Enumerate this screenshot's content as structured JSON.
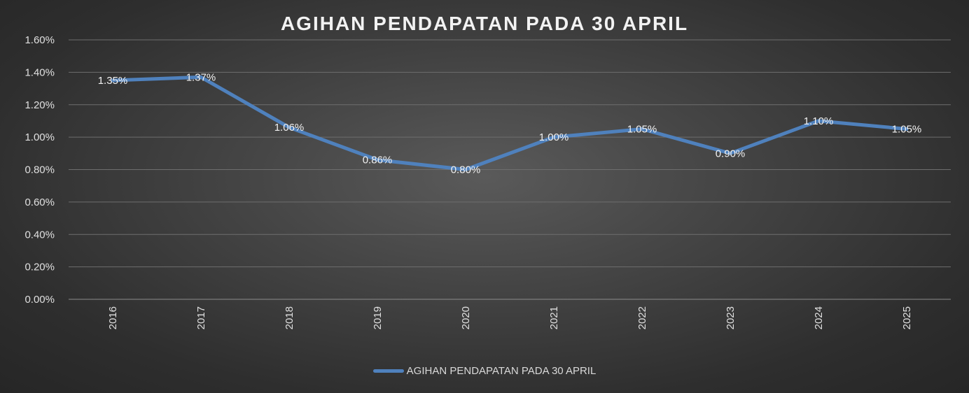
{
  "chart_data": {
    "type": "line",
    "title": "AGIHAN PENDAPATAN PADA 30 APRIL",
    "categories": [
      "2016",
      "2017",
      "2018",
      "2019",
      "2020",
      "2021",
      "2022",
      "2023",
      "2024",
      "2025"
    ],
    "series": [
      {
        "name": "AGIHAN PENDAPATAN PADA 30 APRIL",
        "values": [
          1.35,
          1.37,
          1.06,
          0.86,
          0.8,
          1.0,
          1.05,
          0.9,
          1.1,
          1.05
        ],
        "labels": [
          "1.35%",
          "1.37%",
          "1.06%",
          "0.86%",
          "0.80%",
          "1.00%",
          "1.05%",
          "0.90%",
          "1.10%",
          "1.05%"
        ],
        "color": "#4f81bd"
      }
    ],
    "yticks": [
      "0.00%",
      "0.20%",
      "0.40%",
      "0.60%",
      "0.80%",
      "1.00%",
      "1.20%",
      "1.40%",
      "1.60%"
    ],
    "ylim": [
      0,
      1.6
    ],
    "grid": true,
    "legend": "bottom"
  }
}
